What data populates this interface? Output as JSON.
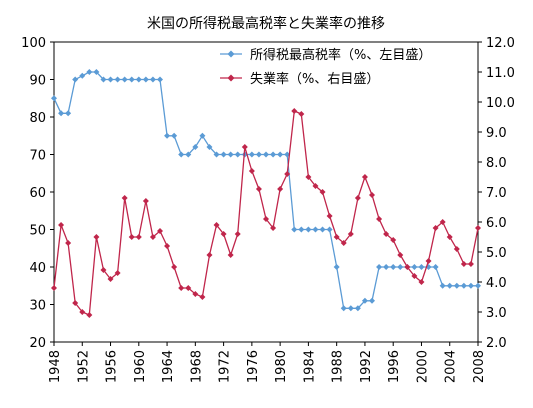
{
  "chart_data": {
    "type": "line",
    "title": "米国の所得税最高税率と失業率の推移",
    "xlabel": "",
    "ylabel_left": "",
    "ylabel_right": "",
    "xlim": [
      1948,
      2008
    ],
    "ylim_left": [
      20,
      100
    ],
    "ylim_right": [
      2.0,
      12.0
    ],
    "x_ticks": [
      "1948",
      "1952",
      "1956",
      "1960",
      "1964",
      "1968",
      "1972",
      "1976",
      "1980",
      "1984",
      "1988",
      "1992",
      "1996",
      "2000",
      "2004",
      "2008"
    ],
    "y_left_ticks": [
      "20",
      "30",
      "40",
      "50",
      "60",
      "70",
      "80",
      "90",
      "100"
    ],
    "y_right_ticks": [
      "2.0",
      "3.0",
      "4.0",
      "5.0",
      "6.0",
      "7.0",
      "8.0",
      "9.0",
      "10.0",
      "11.0",
      "12.0"
    ],
    "grid": false,
    "legend_position": "top-right",
    "series": [
      {
        "name": "所得税最高税率（%、左目盛）",
        "axis": "left",
        "color": "#5b9bd5",
        "marker": "diamond",
        "x": [
          1948,
          1949,
          1950,
          1951,
          1952,
          1953,
          1954,
          1955,
          1956,
          1957,
          1958,
          1959,
          1960,
          1961,
          1962,
          1963,
          1964,
          1965,
          1966,
          1967,
          1968,
          1969,
          1970,
          1971,
          1972,
          1973,
          1974,
          1975,
          1976,
          1977,
          1978,
          1979,
          1980,
          1981,
          1982,
          1983,
          1984,
          1985,
          1986,
          1987,
          1988,
          1989,
          1990,
          1991,
          1992,
          1993,
          1994,
          1995,
          1996,
          1997,
          1998,
          1999,
          2000,
          2001,
          2002,
          2003,
          2004,
          2005,
          2006,
          2007,
          2008
        ],
        "y": [
          85,
          81,
          81,
          90,
          91,
          92,
          92,
          90,
          90,
          90,
          90,
          90,
          90,
          90,
          90,
          90,
          75,
          75,
          70,
          70,
          72,
          75,
          72,
          70,
          70,
          70,
          70,
          70,
          70,
          70,
          70,
          70,
          70,
          70,
          50,
          50,
          50,
          50,
          50,
          50,
          40,
          29,
          29,
          29,
          31,
          31,
          40,
          40,
          40,
          40,
          40,
          40,
          40,
          40,
          40,
          35,
          35,
          35,
          35,
          35,
          35
        ]
      },
      {
        "name": "失業率（%、右目盛）",
        "axis": "right",
        "color": "#c0264b",
        "marker": "diamond",
        "x": [
          1948,
          1949,
          1950,
          1951,
          1952,
          1953,
          1954,
          1955,
          1956,
          1957,
          1958,
          1959,
          1960,
          1961,
          1962,
          1963,
          1964,
          1965,
          1966,
          1967,
          1968,
          1969,
          1970,
          1971,
          1972,
          1973,
          1974,
          1975,
          1976,
          1977,
          1978,
          1979,
          1980,
          1981,
          1982,
          1983,
          1984,
          1985,
          1986,
          1987,
          1988,
          1989,
          1990,
          1991,
          1992,
          1993,
          1994,
          1995,
          1996,
          1997,
          1998,
          1999,
          2000,
          2001,
          2002,
          2003,
          2004,
          2005,
          2006,
          2007,
          2008
        ],
        "y": [
          3.8,
          5.9,
          5.3,
          3.3,
          3.0,
          2.9,
          5.5,
          4.4,
          4.1,
          4.3,
          6.8,
          5.5,
          5.5,
          6.7,
          5.5,
          5.7,
          5.2,
          4.5,
          3.8,
          3.8,
          3.6,
          3.5,
          4.9,
          5.9,
          5.6,
          4.9,
          5.6,
          8.5,
          7.7,
          7.1,
          6.1,
          5.8,
          7.1,
          7.6,
          9.7,
          9.6,
          7.5,
          7.2,
          7.0,
          6.2,
          5.5,
          5.3,
          5.6,
          6.8,
          7.5,
          6.9,
          6.1,
          5.6,
          5.4,
          4.9,
          4.5,
          4.2,
          4.0,
          4.7,
          5.8,
          6.0,
          5.5,
          5.1,
          4.6,
          4.6,
          5.8
        ]
      }
    ]
  }
}
